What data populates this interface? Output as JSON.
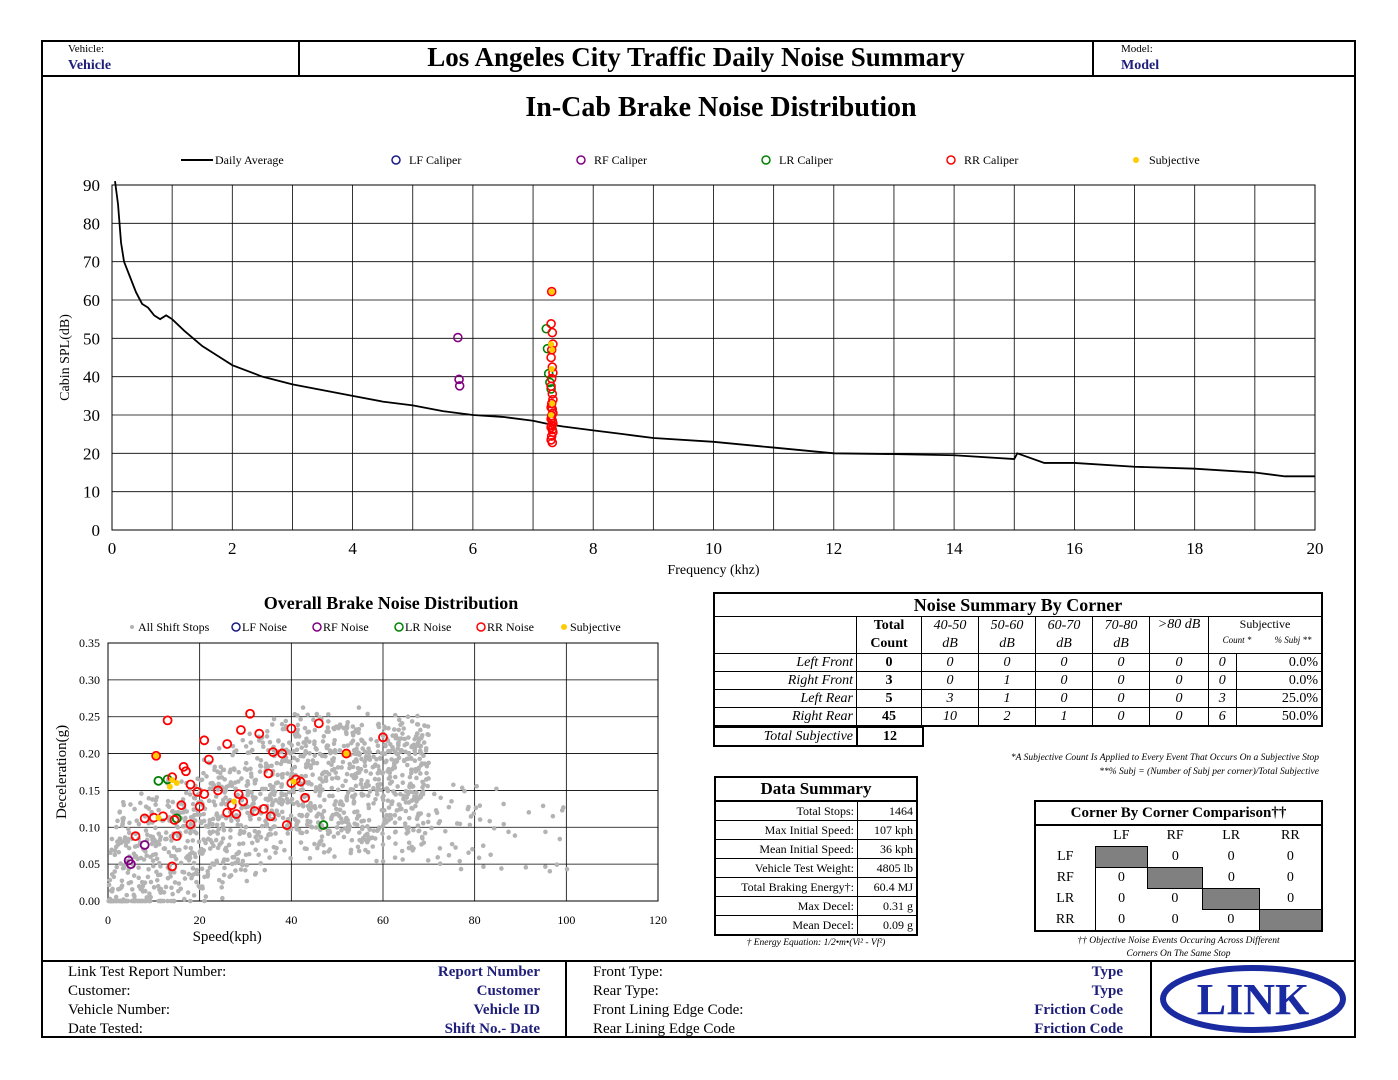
{
  "header": {
    "vehicle_label": "Vehicle:",
    "vehicle_value": "Vehicle",
    "title": "Los Angeles City Traffic Daily Noise Summary",
    "model_label": "Model:",
    "model_value": "Model"
  },
  "colors": {
    "lf": "#1a1a80",
    "rf": "#800080",
    "lr": "#008000",
    "rr": "#ff0000",
    "subjective": "#ffcc00",
    "grey": "#b3b3b3",
    "shade": "#808080"
  },
  "chart_data": [
    {
      "type": "line",
      "title": "In-Cab Brake Noise Distribution",
      "xlabel": "Frequency (khz)",
      "ylabel": "Cabin SPL(dB)",
      "xlim": [
        0,
        20
      ],
      "ylim": [
        0,
        90
      ],
      "xticks": [
        "0",
        "2",
        "4",
        "6",
        "8",
        "10",
        "12",
        "14",
        "16",
        "18",
        "20"
      ],
      "yticks": [
        "0",
        "10",
        "20",
        "30",
        "40",
        "50",
        "60",
        "70",
        "80",
        "90"
      ],
      "grid": true,
      "legend_position": "top",
      "legend": [
        "Daily Average",
        "LF Caliper",
        "RF Caliper",
        "LR Caliper",
        "RR Caliper",
        "Subjective"
      ],
      "series": [
        {
          "name": "Daily Average",
          "kind": "line",
          "x": [
            0.05,
            0.1,
            0.15,
            0.2,
            0.25,
            0.3,
            0.4,
            0.5,
            0.6,
            0.7,
            0.8,
            0.9,
            1.0,
            1.2,
            1.5,
            1.8,
            2.0,
            2.5,
            3.0,
            3.5,
            4.0,
            4.5,
            5.0,
            5.5,
            6.0,
            6.5,
            7.0,
            7.3,
            7.5,
            8.0,
            8.5,
            9.0,
            10.0,
            11.0,
            12.0,
            13.0,
            14.0,
            15.0,
            15.05,
            15.5,
            16.0,
            17.0,
            18.0,
            19.0,
            19.5,
            20.0
          ],
          "y": [
            91,
            85,
            75,
            70,
            68,
            66,
            62,
            59,
            58,
            56,
            55,
            56,
            55,
            52,
            48,
            45,
            43,
            40,
            38,
            36.5,
            35,
            33.5,
            32.5,
            31,
            30,
            29.5,
            28.5,
            27.5,
            27,
            26,
            25,
            24,
            23,
            21.5,
            20,
            19.8,
            19.5,
            18.5,
            20,
            17.5,
            17.5,
            16.5,
            16,
            15,
            14,
            14
          ]
        },
        {
          "name": "LF Caliper",
          "kind": "scatter",
          "x": [],
          "y": []
        },
        {
          "name": "RF Caliper",
          "kind": "scatter",
          "x": [
            5.75,
            5.77,
            5.78
          ],
          "y": [
            50.2,
            39.3,
            37.6
          ]
        },
        {
          "name": "LR Caliper",
          "kind": "scatter",
          "x": [
            7.22,
            7.24,
            7.26,
            7.28,
            7.3
          ],
          "y": [
            52.5,
            47.3,
            40.8,
            38.5,
            36.8
          ]
        },
        {
          "name": "RR Caliper",
          "kind": "scatter",
          "x": [
            7.31,
            7.3,
            7.32,
            7.33,
            7.31,
            7.3,
            7.32,
            7.33,
            7.31,
            7.3,
            7.32,
            7.33,
            7.31,
            7.3,
            7.32,
            7.33,
            7.31,
            7.3,
            7.32,
            7.33,
            7.31,
            7.3,
            7.32,
            7.33,
            7.31,
            7.3,
            7.32
          ],
          "y": [
            62.2,
            53.8,
            51.5,
            48.5,
            47.0,
            45.0,
            42.5,
            41.0,
            39.5,
            37.5,
            35.5,
            34.0,
            33.0,
            32.0,
            31.5,
            30.5,
            29.8,
            29.0,
            28.5,
            27.8,
            27.3,
            26.8,
            26.2,
            25.5,
            24.5,
            23.5,
            22.8
          ]
        },
        {
          "name": "Subjective",
          "kind": "scatter",
          "x": [
            7.31,
            7.3,
            7.32,
            7.31,
            7.32,
            7.3
          ],
          "y": [
            62.2,
            48.5,
            47.0,
            42.0,
            33.0,
            30.0
          ]
        }
      ]
    },
    {
      "type": "scatter",
      "title": "Overall Brake Noise Distribution",
      "xlabel": "Speed(kph)",
      "ylabel": "Deceleration(g)",
      "xlim": [
        0,
        120
      ],
      "ylim": [
        0,
        0.35
      ],
      "xticks": [
        "0",
        "20",
        "40",
        "60",
        "80",
        "100",
        "120"
      ],
      "yticks": [
        "0.00",
        "0.05",
        "0.10",
        "0.15",
        "0.20",
        "0.25",
        "0.30",
        "0.35"
      ],
      "grid": true,
      "legend_position": "top",
      "legend": [
        "All Shift Stops",
        "LF Noise",
        "RF Noise",
        "LR Noise",
        "RR Noise",
        "Subjective"
      ],
      "background_cloud": {
        "name": "All Shift Stops",
        "count": 1464,
        "x_range": [
          0,
          108
        ],
        "y_range": [
          0,
          0.31
        ]
      },
      "series": [
        {
          "name": "LF Noise",
          "x": [],
          "y": []
        },
        {
          "name": "RF Noise",
          "x": [
            4.5,
            5,
            8
          ],
          "y": [
            0.055,
            0.05,
            0.076
          ]
        },
        {
          "name": "LR Noise",
          "x": [
            11,
            13,
            15,
            47
          ],
          "y": [
            0.163,
            0.165,
            0.112,
            0.103
          ]
        },
        {
          "name": "RR Noise",
          "x": [
            10.5,
            13,
            21,
            29,
            31,
            36,
            40,
            46,
            52,
            60,
            16.5,
            18,
            14,
            17,
            22,
            26,
            33,
            35,
            38,
            41,
            6,
            8,
            12,
            14.5,
            16,
            19.5,
            21,
            24,
            27,
            28.5,
            34,
            40,
            42,
            43,
            20,
            26,
            28,
            39,
            15,
            18,
            29.5,
            32,
            35.5,
            14,
            10
          ],
          "y": [
            0.197,
            0.245,
            0.218,
            0.232,
            0.254,
            0.202,
            0.234,
            0.241,
            0.2,
            0.222,
            0.182,
            0.158,
            0.168,
            0.176,
            0.192,
            0.213,
            0.227,
            0.173,
            0.2,
            0.165,
            0.088,
            0.112,
            0.115,
            0.11,
            0.13,
            0.148,
            0.145,
            0.15,
            0.13,
            0.145,
            0.125,
            0.16,
            0.162,
            0.14,
            0.128,
            0.12,
            0.118,
            0.103,
            0.088,
            0.104,
            0.135,
            0.122,
            0.115,
            0.047,
            0.113
          ],
          "scale_note": "approximate"
        },
        {
          "name": "Subjective",
          "x": [
            10.5,
            13.5,
            15,
            14,
            11,
            27.5,
            40.5,
            52
          ],
          "y": [
            0.197,
            0.155,
            0.16,
            0.164,
            0.113,
            0.135,
            0.162,
            0.2
          ]
        }
      ]
    }
  ],
  "noise_summary": {
    "title": "Noise Summary By Corner",
    "col_total": [
      "Total",
      "Count"
    ],
    "bands": [
      [
        "40-50",
        "dB"
      ],
      [
        "50-60",
        "dB"
      ],
      [
        "60-70",
        "dB"
      ],
      [
        "70-80",
        "dB"
      ],
      [
        ">80 dB",
        ""
      ]
    ],
    "subjective_head": "Subjective",
    "count_head": "Count *",
    "pct_head": "% Subj **",
    "rows": [
      {
        "label": "Left Front",
        "total": "0",
        "b1": "0",
        "b2": "0",
        "b3": "0",
        "b4": "0",
        "b5": "0",
        "count": "0",
        "pct": "0.0%"
      },
      {
        "label": "Right Front",
        "total": "3",
        "b1": "0",
        "b2": "1",
        "b3": "0",
        "b4": "0",
        "b5": "0",
        "count": "0",
        "pct": "0.0%"
      },
      {
        "label": "Left Rear",
        "total": "5",
        "b1": "3",
        "b2": "1",
        "b3": "0",
        "b4": "0",
        "b5": "0",
        "count": "3",
        "pct": "25.0%"
      },
      {
        "label": "Right Rear",
        "total": "45",
        "b1": "10",
        "b2": "2",
        "b3": "1",
        "b4": "0",
        "b5": "0",
        "count": "6",
        "pct": "50.0%"
      }
    ],
    "total_subjective_label": "Total Subjective",
    "total_subjective_value": "12",
    "note1": "*A Subjective Count Is Applied to Every Event That Occurs On a Subjective Stop",
    "note2": "**% Subj = (Number of Subj per corner)/Total Subjective"
  },
  "data_summary": {
    "title": "Data Summary",
    "rows": [
      {
        "label": "Total Stops:",
        "value": "1464",
        "unit": ""
      },
      {
        "label": "Max Initial Speed:",
        "value": "107",
        "unit": "kph"
      },
      {
        "label": "Mean Initial Speed:",
        "value": "36",
        "unit": "kph"
      },
      {
        "label": "Vehicle Test Weight:",
        "value": "4805",
        "unit": "lb"
      },
      {
        "label": "Total Braking Energy†:",
        "value": "60.4",
        "unit": "MJ"
      },
      {
        "label": "Max Decel:",
        "value": "0.31",
        "unit": "g"
      },
      {
        "label": "Mean Decel:",
        "value": "0.09",
        "unit": "g"
      }
    ],
    "footnote": "† Energy Equation: 1/2•m•(Vi² - Vf²)"
  },
  "corner_comparison": {
    "title": "Corner By Corner Comparison††",
    "cols": [
      "LF",
      "RF",
      "LR",
      "RR"
    ],
    "rows": [
      {
        "label": "LF",
        "values": [
          "",
          "0",
          "0",
          "0"
        ]
      },
      {
        "label": "RF",
        "values": [
          "0",
          "",
          "0",
          "0"
        ]
      },
      {
        "label": "LR",
        "values": [
          "0",
          "0",
          "",
          "0"
        ]
      },
      {
        "label": "RR",
        "values": [
          "0",
          "0",
          "0",
          ""
        ]
      }
    ],
    "note1": "†† Objective Noise Events Occuring Across Different",
    "note2": "Corners On The Same Stop"
  },
  "footer": {
    "left_labels": [
      "Link Test Report Number:",
      "Customer:",
      "Vehicle Number:",
      "Date Tested:"
    ],
    "left_values": [
      "Report Number",
      "Customer",
      "Vehicle ID",
      "Shift No.- Date"
    ],
    "mid_labels": [
      "Front Type:",
      "Rear Type:",
      "Front Lining Edge Code:",
      "Rear Lining Edge Code"
    ],
    "mid_values": [
      "Type",
      "Type",
      "Friction Code",
      "Friction Code"
    ],
    "logo_text": "LINK"
  }
}
